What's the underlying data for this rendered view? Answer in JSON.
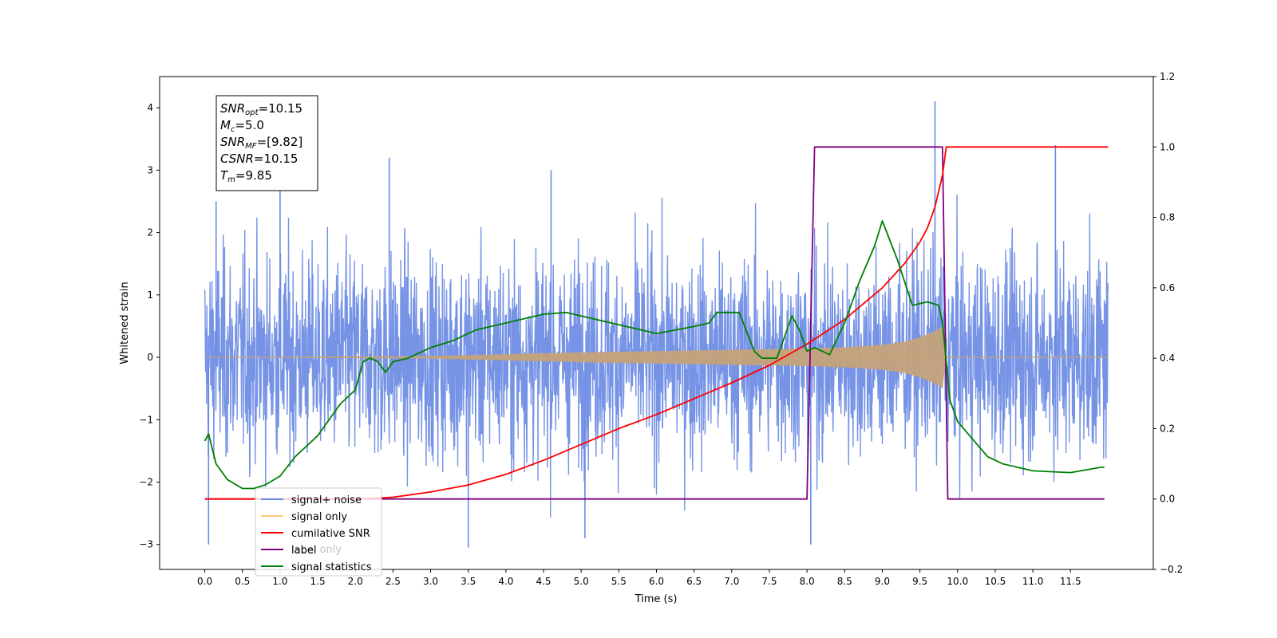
{
  "chart_data": {
    "type": "line",
    "xlabel": "Time (s)",
    "ylabel": "Whitened strain",
    "xlim": [
      -0.6,
      12.6
    ],
    "ylim": [
      -3.4,
      4.5
    ],
    "y2lim": [
      -0.2,
      1.2
    ],
    "x_ticks": [
      0.0,
      0.5,
      1.0,
      1.5,
      2.0,
      2.5,
      3.0,
      3.5,
      4.0,
      4.5,
      5.0,
      5.5,
      6.0,
      6.5,
      7.0,
      7.5,
      8.0,
      8.5,
      9.0,
      9.5,
      10.0,
      10.5,
      11.0,
      11.5
    ],
    "x_tick_labels": [
      "0.0",
      "0.5",
      "1.0",
      "1.5",
      "2.0",
      "2.5",
      "3.0",
      "3.5",
      "4.0",
      "4.5",
      "5.0",
      "5.5",
      "6.0",
      "6.5",
      "7.0",
      "7.5",
      "8.0",
      "8.5",
      "9.0",
      "9.5",
      "10.0",
      "10.5",
      "11.0",
      "11.5"
    ],
    "y_ticks": [
      -3,
      -2,
      -1,
      0,
      1,
      2,
      3,
      4
    ],
    "y_tick_labels": [
      "−3",
      "−2",
      "−1",
      "0",
      "1",
      "2",
      "3",
      "4"
    ],
    "y2_ticks": [
      -0.2,
      0.0,
      0.2,
      0.4,
      0.6,
      0.8,
      1.0,
      1.2
    ],
    "y2_tick_labels": [
      "−0.2",
      "0.0",
      "0.2",
      "0.4",
      "0.6",
      "0.8",
      "1.0",
      "1.2"
    ],
    "grid": false,
    "legend_position": "lower-left",
    "annotation": [
      {
        "base": "SNR",
        "sub": "opt",
        "value": "=10.15"
      },
      {
        "base": "M",
        "sub": "c",
        "value": "=5.0"
      },
      {
        "base": "SNR",
        "sub": "MF",
        "value": "=[9.82]"
      },
      {
        "base": "CSNR",
        "sub": "",
        "value": "=10.15"
      },
      {
        "base": "T",
        "sub": "m",
        "value": "=9.85"
      }
    ],
    "series": [
      {
        "name": "signal+ noise",
        "axis": "left",
        "color": "#6a8ae4",
        "description": "white noise, std about 0.9, spanning 0 to 12 s",
        "x_range": [
          0.0,
          12.0
        ],
        "spikes": [
          [
            0.05,
            -3.0
          ],
          [
            0.15,
            2.5
          ],
          [
            1.0,
            2.7
          ],
          [
            2.45,
            3.2
          ],
          [
            3.5,
            -3.05
          ],
          [
            4.6,
            3.0
          ],
          [
            5.05,
            -2.9
          ],
          [
            8.05,
            -3.0
          ],
          [
            9.7,
            4.1
          ],
          [
            11.3,
            3.4
          ]
        ]
      },
      {
        "name": "signal only",
        "axis": "left",
        "color": "#c4a27a",
        "description": "chirp whose amplitude grows toward the merger and stops at 9.85 s",
        "x": [
          0.0,
          3.0,
          4.0,
          5.0,
          6.0,
          7.0,
          8.0,
          8.5,
          9.0,
          9.3,
          9.5,
          9.7,
          9.8,
          9.85,
          12.0
        ],
        "amplitude": [
          0.0,
          0.02,
          0.05,
          0.08,
          0.1,
          0.12,
          0.14,
          0.16,
          0.2,
          0.25,
          0.32,
          0.42,
          0.5,
          0.0,
          0.0
        ]
      },
      {
        "name": "cumilative SNR",
        "axis": "right",
        "color": "#ff0000",
        "x": [
          0.0,
          2.0,
          2.5,
          3.0,
          3.5,
          4.0,
          4.5,
          5.0,
          5.5,
          6.0,
          6.5,
          7.0,
          7.5,
          8.0,
          8.5,
          9.0,
          9.3,
          9.5,
          9.6,
          9.7,
          9.8,
          9.85,
          12.0
        ],
        "values": [
          0.0,
          0.0,
          0.005,
          0.02,
          0.04,
          0.07,
          0.11,
          0.155,
          0.2,
          0.24,
          0.285,
          0.33,
          0.38,
          0.44,
          0.51,
          0.6,
          0.67,
          0.73,
          0.77,
          0.83,
          0.92,
          1.0,
          1.0
        ]
      },
      {
        "name": "label",
        "axis": "right",
        "color": "#800080",
        "x": [
          0.0,
          8.0,
          8.1,
          9.8,
          9.87,
          11.95
        ],
        "values": [
          0.0,
          0.0,
          1.0,
          1.0,
          0.0,
          0.0
        ]
      },
      {
        "name": "signal statistics",
        "axis": "right",
        "color": "#008000",
        "x": [
          0.0,
          0.05,
          0.15,
          0.3,
          0.5,
          0.65,
          0.8,
          1.0,
          1.2,
          1.5,
          1.8,
          2.0,
          2.1,
          2.2,
          2.3,
          2.4,
          2.5,
          2.7,
          3.0,
          3.3,
          3.6,
          4.0,
          4.5,
          4.8,
          5.2,
          5.6,
          6.0,
          6.5,
          6.7,
          6.8,
          7.1,
          7.3,
          7.4,
          7.6,
          7.8,
          7.9,
          8.0,
          8.1,
          8.3,
          8.5,
          8.7,
          8.9,
          9.0,
          9.2,
          9.4,
          9.6,
          9.75,
          9.8,
          9.9,
          10.0,
          10.2,
          10.4,
          10.6,
          11.0,
          11.5,
          11.9,
          11.95
        ],
        "values": [
          0.165,
          0.185,
          0.1,
          0.055,
          0.03,
          0.03,
          0.04,
          0.065,
          0.12,
          0.18,
          0.27,
          0.31,
          0.39,
          0.4,
          0.39,
          0.36,
          0.39,
          0.4,
          0.43,
          0.45,
          0.48,
          0.5,
          0.525,
          0.53,
          0.51,
          0.49,
          0.47,
          0.49,
          0.5,
          0.53,
          0.53,
          0.42,
          0.4,
          0.4,
          0.52,
          0.48,
          0.42,
          0.43,
          0.41,
          0.5,
          0.62,
          0.72,
          0.79,
          0.68,
          0.55,
          0.56,
          0.55,
          0.5,
          0.28,
          0.22,
          0.17,
          0.12,
          0.1,
          0.08,
          0.075,
          0.09,
          0.09
        ]
      }
    ]
  },
  "legend": {
    "items": [
      {
        "label": "signal+ noise",
        "color": "#6a8ae4"
      },
      {
        "label": "signal only",
        "color": "#ffc57a"
      },
      {
        "label": "cumilative SNR",
        "color": "#ff0000"
      },
      {
        "label": "label",
        "color": "#800080"
      },
      {
        "label": "signal statistics",
        "color": "#008000"
      }
    ],
    "ghost_text": "label only"
  }
}
